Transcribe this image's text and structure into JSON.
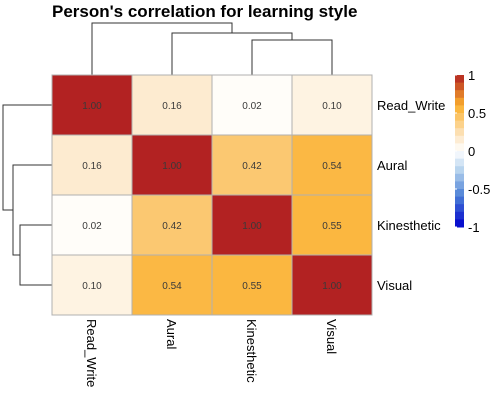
{
  "chart_data": {
    "type": "heatmap",
    "title": "Person's correlation for learning style",
    "rows": [
      "Read_Write",
      "Aural",
      "Kinesthetic",
      "Visual"
    ],
    "columns": [
      "Read_Write",
      "Aural",
      "Kinesthetic",
      "Visual"
    ],
    "values": [
      [
        1.0,
        0.16,
        0.02,
        0.1
      ],
      [
        0.16,
        1.0,
        0.42,
        0.54
      ],
      [
        0.02,
        0.42,
        1.0,
        0.55
      ],
      [
        0.1,
        0.54,
        0.55,
        1.0
      ]
    ],
    "value_labels": [
      [
        "1.00",
        "0.16",
        "0.02",
        "0.10"
      ],
      [
        "0.16",
        "1.00",
        "0.42",
        "0.54"
      ],
      [
        "0.02",
        "0.42",
        "1.00",
        "0.55"
      ],
      [
        "0.10",
        "0.54",
        "0.55",
        "1.00"
      ]
    ],
    "color_scale": {
      "range": [
        -1,
        1
      ],
      "ticks": [
        1,
        0.5,
        0,
        -0.5,
        -1
      ],
      "tick_labels": [
        "1",
        "0.5",
        "0",
        "-0.5",
        "-1"
      ],
      "colors": {
        "neg_strong": "#0000cd",
        "neg_mid": "#4a7fd6",
        "neg_weak": "#b8d4ee",
        "neutral": "#ffffff",
        "pos_weak": "#fce6c4",
        "pos_mid": "#fbb02d",
        "pos_strong": "#b22222"
      }
    },
    "legend_position": "right",
    "row_dendrogram": true,
    "column_dendrogram": true,
    "grid": false
  }
}
